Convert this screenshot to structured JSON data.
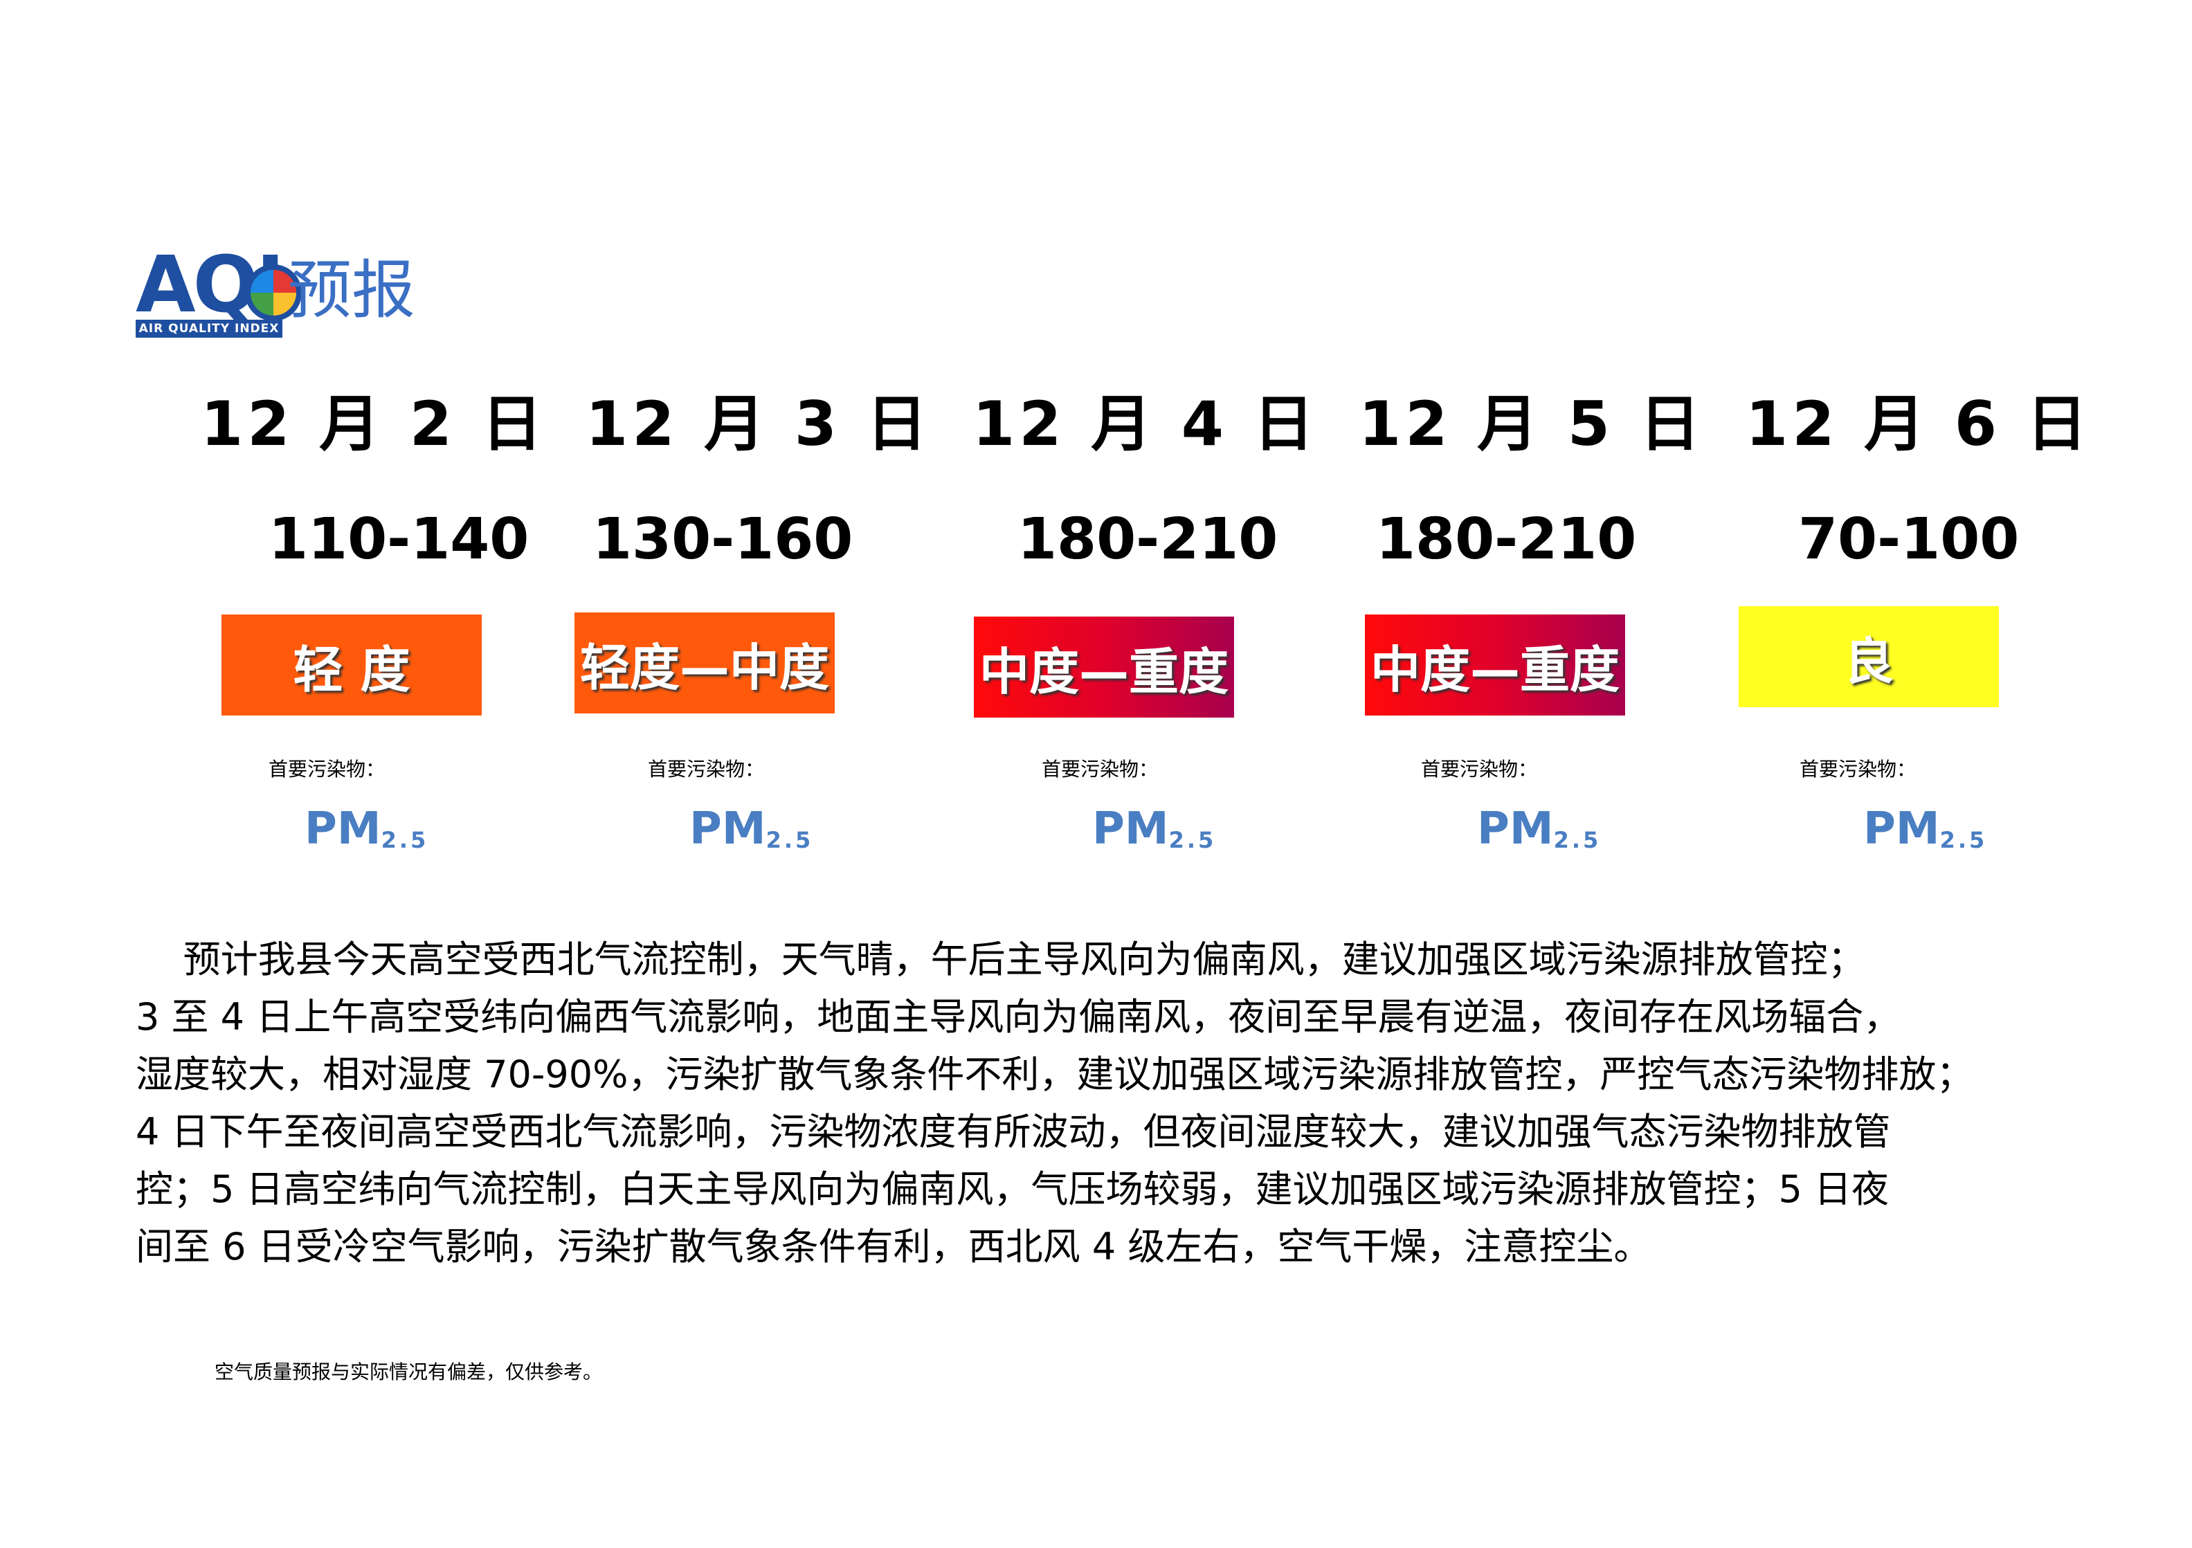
{
  "header": {
    "logo_aqi": "AQI",
    "logo_subtitle": "AIR QUALITY INDEX",
    "title": "预报"
  },
  "forecast": [
    {
      "date": "12 月 2 日",
      "range": "110-140",
      "level": "轻 度",
      "pollutant_label": "首要污染物：",
      "pollutant_main": "PM",
      "pollutant_sub": "2.5"
    },
    {
      "date": "12 月 3 日",
      "range": "130-160",
      "level": "轻度—中度",
      "pollutant_label": "首要污染物：",
      "pollutant_main": "PM",
      "pollutant_sub": "2.5"
    },
    {
      "date": "12 月 4 日",
      "range": "180-210",
      "level": "中度—重度",
      "pollutant_label": "首要污染物：",
      "pollutant_main": "PM",
      "pollutant_sub": "2.5"
    },
    {
      "date": "12 月 5 日",
      "range": "180-210",
      "level": "中度—重度",
      "pollutant_label": "首要污染物：",
      "pollutant_main": "PM",
      "pollutant_sub": "2.5"
    },
    {
      "date": "12 月 6 日",
      "range": "70-100",
      "level": "良",
      "pollutant_label": "首要污染物：",
      "pollutant_main": "PM",
      "pollutant_sub": "2.5"
    }
  ],
  "colors": {
    "light": "#ff5a0c",
    "moderate_heavy": "#e0002a",
    "good": "#ffff22",
    "pm_text": "#4a7ec2"
  },
  "description": {
    "lines": [
      "    预计我县今天高空受西北气流控制，天气晴，午后主导风向为偏南风，建议加强区域污染源排放管控；",
      "3 至 4 日上午高空受纬向偏西气流影响，地面主导风向为偏南风，夜间至早晨有逆温，夜间存在风场辐合，",
      "湿度较大，相对湿度 70-90%，污染扩散气象条件不利，建议加强区域污染源排放管控，严控气态污染物排放；",
      "4 日下午至夜间高空受西北气流影响，污染物浓度有所波动，但夜间湿度较大，建议加强气态污染物排放管",
      "控；5 日高空纬向气流控制，白天主导风向为偏南风，气压场较弱，建议加强区域污染源排放管控；5 日夜",
      "间至 6 日受冷空气影响，污染扩散气象条件有利，西北风 4 级左右，空气干燥，注意控尘。"
    ]
  },
  "footer": {
    "note": "空气质量预报与实际情况有偏差，仅供参考。"
  }
}
